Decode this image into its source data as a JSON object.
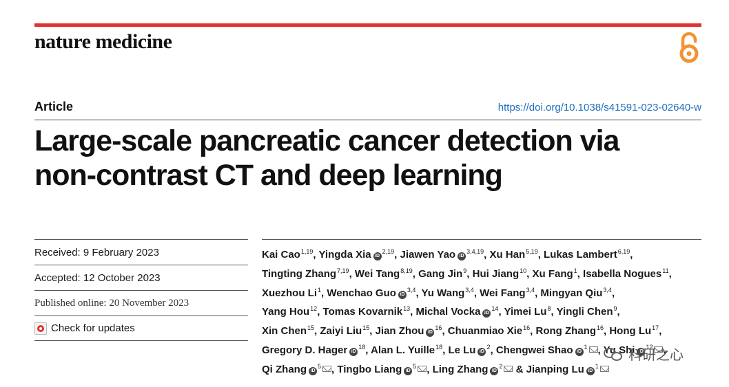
{
  "header": {
    "journal_name": "nature medicine",
    "open_access_icon": "open-access-lock-icon",
    "accent_color": "#e4302f",
    "oa_color": "#f39233"
  },
  "article": {
    "type": "Article",
    "doi": "https://doi.org/10.1038/s41591-023-02640-w",
    "title_line1": "Large-scale pancreatic cancer detection via",
    "title_line2": "non-contrast CT and deep learning"
  },
  "sidebar": {
    "received": "Received: 9 February 2023",
    "accepted": "Accepted: 12 October 2023",
    "published": "Published online: 20 November 2023",
    "check_updates": "Check for updates"
  },
  "authors": [
    {
      "name": "Kai Cao",
      "sup": "1,19",
      "orcid": false,
      "mail": false,
      "sep": ", "
    },
    {
      "name": "Yingda Xia",
      "sup": "2,19",
      "orcid": true,
      "mail": false,
      "sep": ", "
    },
    {
      "name": "Jiawen Yao",
      "sup": "3,4,19",
      "orcid": true,
      "mail": false,
      "sep": ", "
    },
    {
      "name": "Xu Han",
      "sup": "5,19",
      "orcid": false,
      "mail": false,
      "sep": ", "
    },
    {
      "name": "Lukas Lambert",
      "sup": "6,19",
      "orcid": false,
      "mail": false,
      "sep": ", "
    },
    {
      "name": "Tingting Zhang",
      "sup": "7,19",
      "orcid": false,
      "mail": false,
      "sep": ", "
    },
    {
      "name": "Wei Tang",
      "sup": "8,19",
      "orcid": false,
      "mail": false,
      "sep": ", "
    },
    {
      "name": "Gang Jin",
      "sup": "9",
      "orcid": false,
      "mail": false,
      "sep": ", "
    },
    {
      "name": "Hui Jiang",
      "sup": "10",
      "orcid": false,
      "mail": false,
      "sep": ", "
    },
    {
      "name": "Xu Fang",
      "sup": "1",
      "orcid": false,
      "mail": false,
      "sep": ", "
    },
    {
      "name": "Isabella Nogues",
      "sup": "11",
      "orcid": false,
      "mail": false,
      "sep": ", "
    },
    {
      "name": "Xuezhou Li",
      "sup": "1",
      "orcid": false,
      "mail": false,
      "sep": ", "
    },
    {
      "name": "Wenchao Guo",
      "sup": "3,4",
      "orcid": true,
      "mail": false,
      "sep": ", "
    },
    {
      "name": "Yu Wang",
      "sup": "3,4",
      "orcid": false,
      "mail": false,
      "sep": ", "
    },
    {
      "name": "Wei Fang",
      "sup": "3,4",
      "orcid": false,
      "mail": false,
      "sep": ", "
    },
    {
      "name": "Mingyan Qiu",
      "sup": "3,4",
      "orcid": false,
      "mail": false,
      "sep": ", "
    },
    {
      "name": "Yang Hou",
      "sup": "12",
      "orcid": false,
      "mail": false,
      "sep": ", "
    },
    {
      "name": "Tomas Kovarnik",
      "sup": "13",
      "orcid": false,
      "mail": false,
      "sep": ", "
    },
    {
      "name": "Michal Vocka",
      "sup": "14",
      "orcid": true,
      "mail": false,
      "sep": ", "
    },
    {
      "name": "Yimei Lu",
      "sup": "8",
      "orcid": false,
      "mail": false,
      "sep": ", "
    },
    {
      "name": "Yingli Chen",
      "sup": "9",
      "orcid": false,
      "mail": false,
      "sep": ", "
    },
    {
      "name": "Xin Chen",
      "sup": "15",
      "orcid": false,
      "mail": false,
      "sep": ", "
    },
    {
      "name": "Zaiyi Liu",
      "sup": "15",
      "orcid": false,
      "mail": false,
      "sep": ", "
    },
    {
      "name": "Jian Zhou",
      "sup": "16",
      "orcid": true,
      "mail": false,
      "sep": ", "
    },
    {
      "name": "Chuanmiao Xie",
      "sup": "16",
      "orcid": false,
      "mail": false,
      "sep": ", "
    },
    {
      "name": "Rong Zhang",
      "sup": "16",
      "orcid": false,
      "mail": false,
      "sep": ", "
    },
    {
      "name": "Hong Lu",
      "sup": "17",
      "orcid": false,
      "mail": false,
      "sep": ", "
    },
    {
      "name": "Gregory D. Hager",
      "sup": "18",
      "orcid": true,
      "mail": false,
      "sep": ", "
    },
    {
      "name": "Alan L. Yuille",
      "sup": "18",
      "orcid": false,
      "mail": false,
      "sep": ", "
    },
    {
      "name": "Le Lu",
      "sup": "2",
      "orcid": true,
      "mail": false,
      "sep": ", "
    },
    {
      "name": "Chengwei Shao",
      "sup": "1",
      "orcid": true,
      "mail": true,
      "sep": ", "
    },
    {
      "name": "Yu Shi",
      "sup": "12",
      "orcid": true,
      "mail": true,
      "sep": ", "
    },
    {
      "name": "Qi Zhang",
      "sup": "5",
      "orcid": true,
      "mail": true,
      "sep": ", "
    },
    {
      "name": "Tingbo Liang",
      "sup": "5",
      "orcid": true,
      "mail": true,
      "sep": ", "
    },
    {
      "name": "Ling Zhang",
      "sup": "2",
      "orcid": true,
      "mail": true,
      "sep": " & "
    },
    {
      "name": "Jianping Lu",
      "sup": "1",
      "orcid": true,
      "mail": true,
      "sep": ""
    }
  ],
  "watermark": {
    "text": "科研之心",
    "icon": "wechat-icon"
  }
}
